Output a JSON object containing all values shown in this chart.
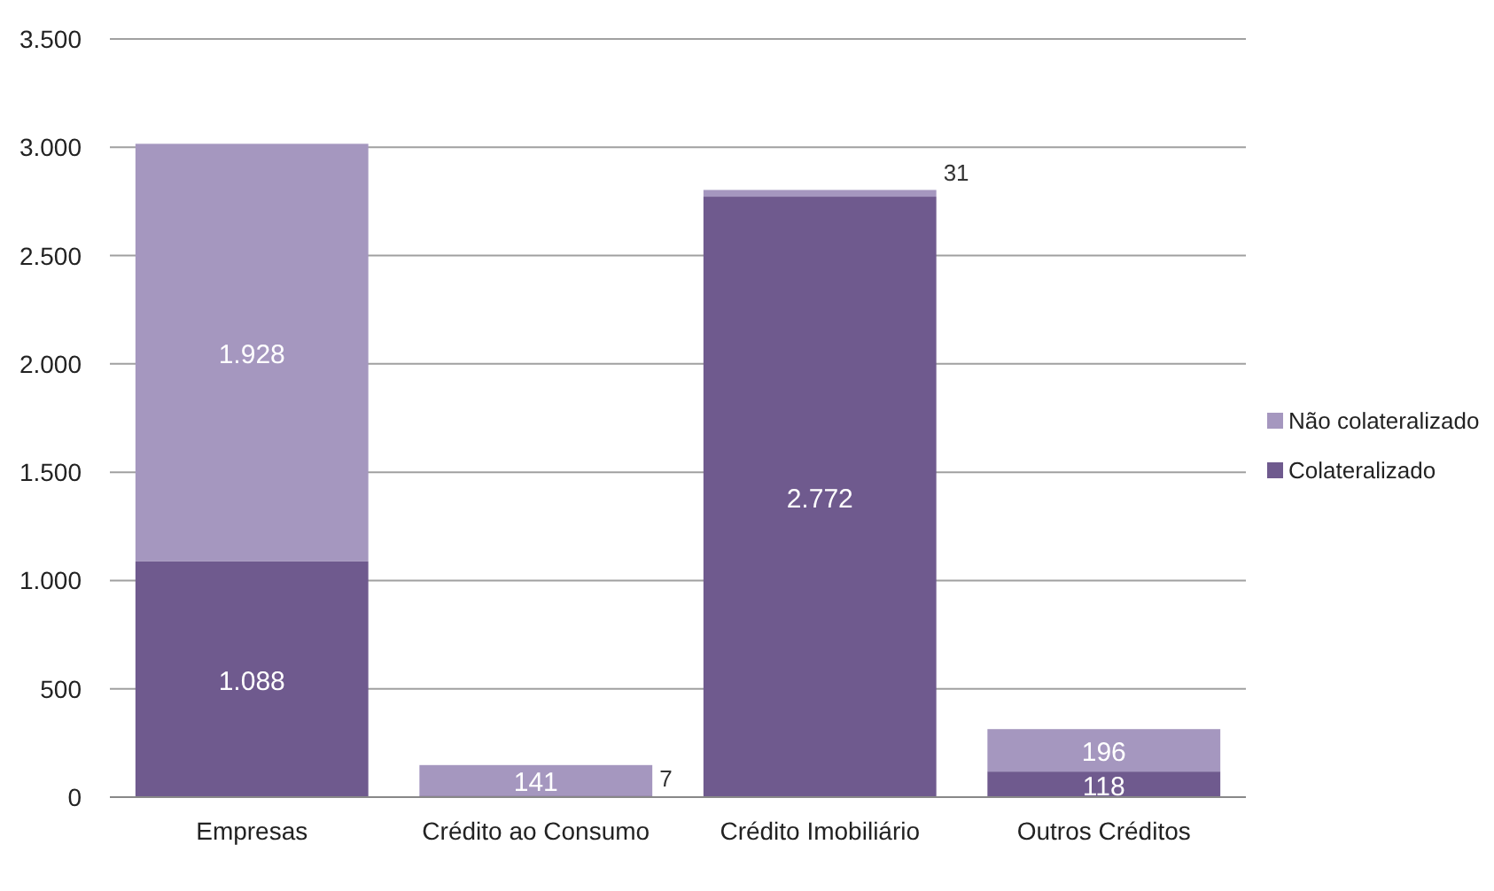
{
  "chart_data": {
    "type": "bar",
    "stacked": true,
    "categories": [
      "Empresas",
      "Crédito ao Consumo",
      "Crédito Imobiliário",
      "Outros Créditos"
    ],
    "series": [
      {
        "name": "Colateralizado",
        "color": "#6f5a8e",
        "values": [
          1088,
          7,
          2772,
          118
        ],
        "value_labels": [
          "1.088",
          "7",
          "2.772",
          "118"
        ]
      },
      {
        "name": "Não colateralizado",
        "color": "#a597bf",
        "values": [
          1928,
          141,
          31,
          196
        ],
        "value_labels": [
          "1.928",
          "141",
          "31",
          "196"
        ]
      }
    ],
    "ylim": [
      0,
      3500
    ],
    "yticks": [
      0,
      500,
      {
        "value": 1000,
        "label": "1.000"
      },
      {
        "value": 1500,
        "label": "1.500"
      },
      {
        "value": 2000,
        "label": "2.000"
      },
      {
        "value": 2500,
        "label": "2.500"
      },
      {
        "value": 3000,
        "label": "3.000"
      },
      {
        "value": 3500,
        "label": "3.500"
      }
    ],
    "grid": "y",
    "legend": "right"
  }
}
